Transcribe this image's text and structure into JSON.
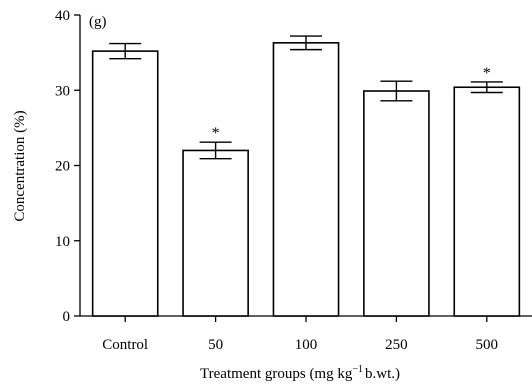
{
  "chart_data": {
    "type": "bar",
    "panel_label": "(g)",
    "categories": [
      "Control",
      "50",
      "100",
      "250",
      "500"
    ],
    "values": [
      35.2,
      22.0,
      36.3,
      29.9,
      30.4
    ],
    "errors": [
      1.0,
      1.1,
      0.9,
      1.3,
      0.7
    ],
    "significance": [
      "",
      "*",
      "",
      "",
      "*"
    ],
    "xlabel": {
      "main": "Treatment groups (mg kg",
      "superscript": "−1",
      "tail": "b.wt.)"
    },
    "ylabel": "Concentration (%)",
    "ylim": [
      0,
      40
    ],
    "yticks": [
      0,
      10,
      20,
      30,
      40
    ],
    "grid": false,
    "legend": false
  }
}
